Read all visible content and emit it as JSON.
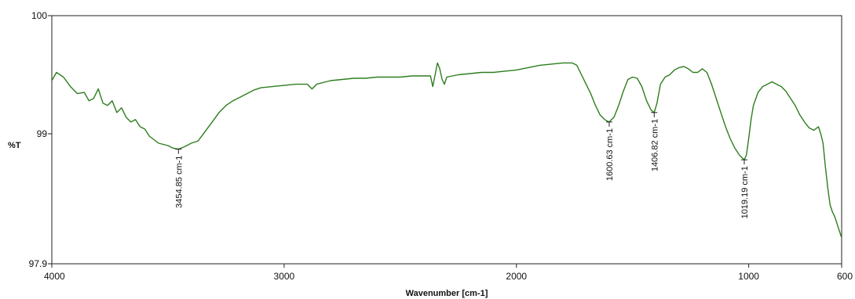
{
  "chart_data": {
    "type": "line",
    "title": "",
    "xlabel": "Wavenumber [cm-1]",
    "ylabel": "%T",
    "xlim": [
      4000,
      600
    ],
    "ylim": [
      97.9,
      100
    ],
    "x_reversed": true,
    "x_ticks": [
      "4000",
      "3000",
      "2000",
      "1000",
      "600"
    ],
    "x_tick_values": [
      4000,
      3000,
      2000,
      1000,
      600
    ],
    "y_ticks": [
      "100",
      "99",
      "97.9"
    ],
    "y_tick_values": [
      100,
      99,
      97.9
    ],
    "grid": false,
    "line_color": "#2e7d1e",
    "series": [
      {
        "x": [
          4000,
          3980,
          3950,
          3920,
          3890,
          3860,
          3840,
          3820,
          3800,
          3780,
          3760,
          3740,
          3720,
          3700,
          3680,
          3660,
          3640,
          3620,
          3600,
          3580,
          3560,
          3540,
          3520,
          3500,
          3480,
          3455,
          3430,
          3400,
          3370,
          3340,
          3310,
          3280,
          3250,
          3220,
          3190,
          3160,
          3130,
          3100,
          3050,
          3000,
          2950,
          2900,
          2880,
          2860,
          2800,
          2750,
          2700,
          2650,
          2600,
          2550,
          2500,
          2450,
          2400,
          2370,
          2360,
          2350,
          2340,
          2330,
          2320,
          2310,
          2300,
          2250,
          2200,
          2150,
          2100,
          2050,
          2000,
          1950,
          1900,
          1850,
          1800,
          1760,
          1740,
          1720,
          1700,
          1680,
          1660,
          1640,
          1620,
          1601,
          1580,
          1560,
          1540,
          1520,
          1500,
          1480,
          1460,
          1440,
          1430,
          1420,
          1407,
          1395,
          1380,
          1360,
          1340,
          1320,
          1300,
          1280,
          1260,
          1240,
          1220,
          1200,
          1180,
          1160,
          1140,
          1120,
          1100,
          1080,
          1060,
          1040,
          1030,
          1019,
          1010,
          1000,
          990,
          980,
          960,
          940,
          920,
          900,
          880,
          860,
          840,
          820,
          800,
          780,
          760,
          740,
          720,
          700,
          690,
          680,
          670,
          660,
          650,
          640,
          630,
          620,
          610,
          600
        ],
        "y": [
          99.45,
          99.52,
          99.48,
          99.4,
          99.34,
          99.35,
          99.28,
          99.3,
          99.38,
          99.26,
          99.24,
          99.28,
          99.18,
          99.22,
          99.14,
          99.1,
          99.12,
          99.06,
          99.04,
          98.98,
          98.95,
          98.92,
          98.91,
          98.9,
          98.88,
          98.87,
          98.89,
          98.92,
          98.94,
          99.02,
          99.1,
          99.18,
          99.24,
          99.28,
          99.31,
          99.34,
          99.37,
          99.39,
          99.4,
          99.41,
          99.42,
          99.42,
          99.38,
          99.42,
          99.45,
          99.46,
          99.47,
          99.47,
          99.48,
          99.48,
          99.48,
          99.49,
          99.49,
          99.49,
          99.4,
          99.5,
          99.6,
          99.55,
          99.46,
          99.42,
          99.48,
          99.5,
          99.51,
          99.52,
          99.52,
          99.53,
          99.54,
          99.56,
          99.58,
          99.59,
          99.6,
          99.6,
          99.58,
          99.5,
          99.42,
          99.34,
          99.24,
          99.16,
          99.12,
          99.1,
          99.14,
          99.24,
          99.36,
          99.46,
          99.48,
          99.47,
          99.4,
          99.28,
          99.24,
          99.2,
          99.18,
          99.26,
          99.42,
          99.48,
          99.5,
          99.54,
          99.56,
          99.57,
          99.55,
          99.52,
          99.52,
          99.55,
          99.52,
          99.42,
          99.3,
          99.18,
          99.06,
          98.96,
          98.88,
          98.82,
          98.8,
          98.78,
          98.82,
          98.96,
          99.12,
          99.24,
          99.35,
          99.4,
          99.42,
          99.44,
          99.42,
          99.4,
          99.36,
          99.3,
          99.24,
          99.16,
          99.1,
          99.05,
          99.03,
          99.06,
          99.0,
          98.92,
          98.72,
          98.55,
          98.4,
          98.34,
          98.3,
          98.24,
          98.18,
          98.12
        ]
      }
    ],
    "annotations": [
      {
        "x": 3454.85,
        "y": 98.87,
        "label": "3454.85 cm-1"
      },
      {
        "x": 1600.63,
        "y": 99.1,
        "label": "1600.63 cm-1"
      },
      {
        "x": 1406.82,
        "y": 99.18,
        "label": "1406.82 cm-1"
      },
      {
        "x": 1019.19,
        "y": 98.78,
        "label": "1019.19 cm-1"
      }
    ]
  }
}
